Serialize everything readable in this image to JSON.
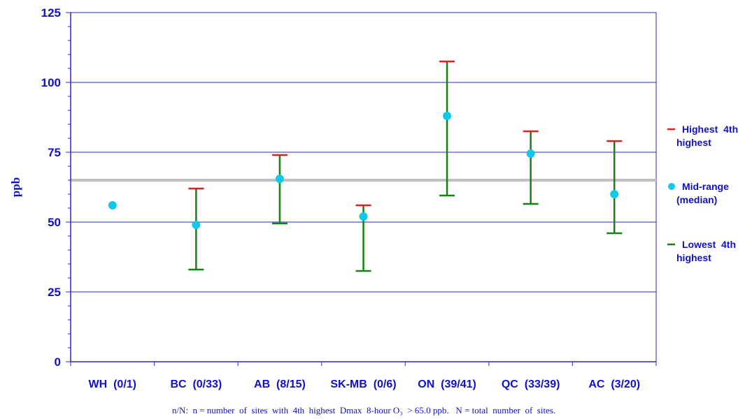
{
  "chart_data": {
    "type": "error-bar",
    "ylabel": "ppb",
    "xlabel": "",
    "ylim": [
      0,
      125
    ],
    "yticks": [
      0,
      25,
      50,
      75,
      100,
      125
    ],
    "grid": true,
    "reference_line": 65,
    "categories": [
      "WH  (0/1)",
      "BC  (0/33)",
      "AB  (8/15)",
      "SK-MB  (0/6)",
      "ON  (39/41)",
      "QC  (33/39)",
      "AC  (3/20)"
    ],
    "series": [
      {
        "name": "Highest 4th highest",
        "values": [
          null,
          62,
          74,
          56,
          107.5,
          82.5,
          79
        ]
      },
      {
        "name": "Mid-range (median)",
        "values": [
          56,
          49,
          65.5,
          52,
          88,
          74.5,
          60
        ]
      },
      {
        "name": "Lowest 4th highest",
        "values": [
          null,
          33,
          49.5,
          32.5,
          59.5,
          56.5,
          46
        ]
      }
    ],
    "legend_position": "right",
    "note": "n/N:  n = number  of  sites  with  4th  highest  Dmax  8-hour O₃  > 65.0 ppb.   N = total  number  of  sites.",
    "colors": {
      "high": "#e02020",
      "median": "#12c8e8",
      "low": "#158015",
      "grid": "#2a2ab8",
      "reference": "#c0c0c0",
      "text": "#1010c8"
    }
  }
}
